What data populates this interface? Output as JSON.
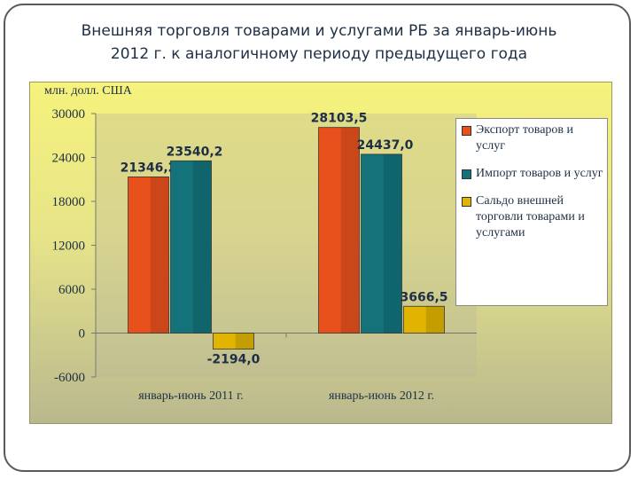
{
  "slide": {
    "title_line1": "Внешняя торговля товарами и услугами РБ за январь-июнь",
    "title_line2": "2012 г. к аналогичному периоду предыдущего года"
  },
  "colors": {
    "export": "#e8501c",
    "import": "#13727a",
    "balance": "#e0b400",
    "panel_top": "#f6f27c",
    "panel_bottom": "#b9b88e"
  },
  "chart_data": {
    "type": "bar",
    "ylabel": "млн. долл. США",
    "categories": [
      "январь-июнь 2011 г.",
      "январь-июнь 2012 г."
    ],
    "series": [
      {
        "name": "Экспорт товаров и услуг",
        "values": [
          21346.2,
          28103.5
        ],
        "labels": [
          "21346,2",
          "28103,5"
        ]
      },
      {
        "name": "Импорт товаров и услуг",
        "values": [
          23540.2,
          24437.0
        ],
        "labels": [
          "23540,2",
          "24437,0"
        ]
      },
      {
        "name": "Сальдо внешней торговли товарами и услугами",
        "values": [
          -2194.0,
          3666.5
        ],
        "labels": [
          "-2194,0",
          "3666,5"
        ]
      }
    ],
    "ylim": [
      -6000,
      30000
    ],
    "yticks": [
      30000,
      24000,
      18000,
      12000,
      6000,
      0,
      -6000
    ],
    "grid": false,
    "legend": "right"
  }
}
